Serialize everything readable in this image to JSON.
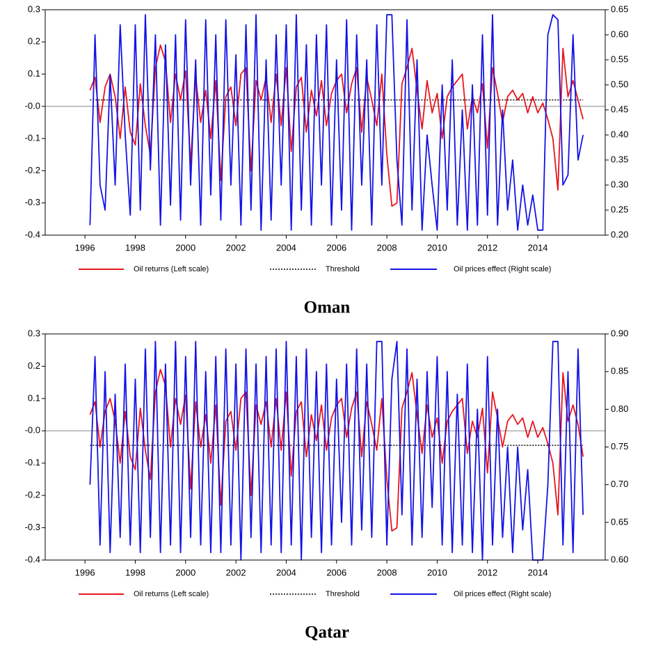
{
  "chart_data": [
    {
      "type": "line",
      "title": "Oman",
      "x": [
        1996.2,
        1996.4,
        1996.6,
        1996.8,
        1997,
        1997.2,
        1997.4,
        1997.6,
        1997.8,
        1998,
        1998.2,
        1998.4,
        1998.6,
        1998.8,
        1999,
        1999.2,
        1999.4,
        1999.6,
        1999.8,
        2000,
        2000.2,
        2000.4,
        2000.6,
        2000.8,
        2001,
        2001.2,
        2001.4,
        2001.6,
        2001.8,
        2002,
        2002.2,
        2002.4,
        2002.6,
        2002.8,
        2003,
        2003.2,
        2003.4,
        2003.6,
        2003.8,
        2004,
        2004.2,
        2004.4,
        2004.6,
        2004.8,
        2005,
        2005.2,
        2005.4,
        2005.6,
        2005.8,
        2006,
        2006.2,
        2006.4,
        2006.6,
        2006.8,
        2007,
        2007.2,
        2007.4,
        2007.6,
        2007.8,
        2008,
        2008.2,
        2008.4,
        2008.6,
        2008.8,
        2009,
        2009.2,
        2009.4,
        2009.6,
        2009.8,
        2010,
        2010.2,
        2010.4,
        2010.6,
        2010.8,
        2011,
        2011.2,
        2011.4,
        2011.6,
        2011.8,
        2012,
        2012.2,
        2012.4,
        2012.6,
        2012.8,
        2013,
        2013.2,
        2013.4,
        2013.6,
        2013.8,
        2014,
        2014.2,
        2014.4,
        2014.6,
        2014.8,
        2015,
        2015.2,
        2015.4,
        2015.6,
        2015.8
      ],
      "xlim": [
        1994.42,
        2016.68
      ],
      "xticks": [
        1996,
        1998,
        2000,
        2002,
        2004,
        2006,
        2008,
        2010,
        2012,
        2014
      ],
      "ylim": [
        -0.4,
        0.3
      ],
      "yticks": [
        -0.4,
        -0.3,
        -0.2,
        -0.1,
        {
          "value": 0,
          "label": "-0.0"
        },
        0.1,
        0.2,
        0.3
      ],
      "y2lim": [
        0.2,
        0.65
      ],
      "y2ticks": [
        {
          "value": 0.2,
          "label": "0.20"
        },
        0.25,
        {
          "value": 0.3,
          "label": "0.30"
        },
        0.35,
        {
          "value": 0.4,
          "label": "0.40"
        },
        0.45,
        {
          "value": 0.5,
          "label": "0.50"
        },
        0.55,
        {
          "value": 0.6,
          "label": "0.60"
        },
        0.65
      ],
      "series": [
        {
          "name": "Oil returns (Left scale)",
          "color": "#e8141c",
          "values": [
            0.05,
            0.09,
            -0.05,
            0.06,
            0.1,
            0.03,
            -0.1,
            0.06,
            -0.08,
            -0.12,
            0.07,
            -0.06,
            -0.15,
            0.12,
            0.19,
            0.14,
            -0.05,
            0.1,
            0.02,
            0.11,
            -0.18,
            0.09,
            -0.05,
            0.05,
            -0.1,
            0.08,
            -0.23,
            0.03,
            0.06,
            -0.06,
            0.1,
            0.12,
            -0.2,
            0.08,
            0.02,
            0.09,
            -0.05,
            0.1,
            -0.06,
            0.12,
            -0.14,
            0.06,
            0.09,
            -0.08,
            0.05,
            -0.03,
            0.08,
            -0.06,
            0.04,
            0.08,
            0.1,
            -0.02,
            0.07,
            0.12,
            -0.08,
            0.09,
            0.02,
            -0.06,
            0.1,
            -0.15,
            -0.31,
            -0.3,
            0.07,
            0.12,
            0.18,
            0.05,
            -0.07,
            0.08,
            -0.02,
            0.04,
            -0.1,
            0.03,
            0.06,
            0.08,
            0.1,
            -0.07,
            0.03,
            -0.02,
            0.07,
            -0.13,
            0.12,
            0.04,
            -0.05,
            0.03,
            0.05,
            0.02,
            0.04,
            -0.02,
            0.03,
            -0.02,
            0.01,
            -0.04,
            -0.1,
            -0.26,
            0.18,
            0.03,
            0.08,
            0.02,
            -0.04
          ]
        },
        {
          "name": "Threshold",
          "color": "#000000",
          "style": "dotted",
          "value": 0.02
        },
        {
          "name": "Oil prices effect (Right scale)",
          "color": "#1212e6",
          "axis": "y2",
          "values": [
            0.22,
            0.6,
            0.3,
            0.25,
            0.52,
            0.3,
            0.62,
            0.4,
            0.24,
            0.62,
            0.25,
            0.64,
            0.33,
            0.6,
            0.22,
            0.58,
            0.26,
            0.6,
            0.23,
            0.63,
            0.3,
            0.55,
            0.22,
            0.63,
            0.28,
            0.6,
            0.23,
            0.63,
            0.3,
            0.56,
            0.22,
            0.62,
            0.25,
            0.64,
            0.21,
            0.55,
            0.23,
            0.6,
            0.3,
            0.62,
            0.21,
            0.64,
            0.25,
            0.58,
            0.22,
            0.6,
            0.3,
            0.62,
            0.22,
            0.55,
            0.25,
            0.63,
            0.21,
            0.6,
            0.3,
            0.55,
            0.22,
            0.62,
            0.3,
            0.64,
            0.64,
            0.35,
            0.22,
            0.63,
            0.25,
            0.55,
            0.21,
            0.4,
            0.3,
            0.21,
            0.5,
            0.25,
            0.55,
            0.22,
            0.45,
            0.21,
            0.5,
            0.22,
            0.6,
            0.24,
            0.64,
            0.22,
            0.45,
            0.25,
            0.35,
            0.21,
            0.3,
            0.22,
            0.28,
            0.21,
            0.21,
            0.6,
            0.64,
            0.63,
            0.3,
            0.32,
            0.6,
            0.35,
            0.4
          ]
        }
      ]
    },
    {
      "type": "line",
      "title": "Qatar",
      "x": [
        1996.2,
        1996.4,
        1996.6,
        1996.8,
        1997,
        1997.2,
        1997.4,
        1997.6,
        1997.8,
        1998,
        1998.2,
        1998.4,
        1998.6,
        1998.8,
        1999,
        1999.2,
        1999.4,
        1999.6,
        1999.8,
        2000,
        2000.2,
        2000.4,
        2000.6,
        2000.8,
        2001,
        2001.2,
        2001.4,
        2001.6,
        2001.8,
        2002,
        2002.2,
        2002.4,
        2002.6,
        2002.8,
        2003,
        2003.2,
        2003.4,
        2003.6,
        2003.8,
        2004,
        2004.2,
        2004.4,
        2004.6,
        2004.8,
        2005,
        2005.2,
        2005.4,
        2005.6,
        2005.8,
        2006,
        2006.2,
        2006.4,
        2006.6,
        2006.8,
        2007,
        2007.2,
        2007.4,
        2007.6,
        2007.8,
        2008,
        2008.2,
        2008.4,
        2008.6,
        2008.8,
        2009,
        2009.2,
        2009.4,
        2009.6,
        2009.8,
        2010,
        2010.2,
        2010.4,
        2010.6,
        2010.8,
        2011,
        2011.2,
        2011.4,
        2011.6,
        2011.8,
        2012,
        2012.2,
        2012.4,
        2012.6,
        2012.8,
        2013,
        2013.2,
        2013.4,
        2013.6,
        2013.8,
        2014,
        2014.2,
        2014.4,
        2014.6,
        2014.8,
        2015,
        2015.2,
        2015.4,
        2015.6,
        2015.8
      ],
      "xlim": [
        1994.42,
        2016.68
      ],
      "xticks": [
        1996,
        1998,
        2000,
        2002,
        2004,
        2006,
        2008,
        2010,
        2012,
        2014
      ],
      "ylim": [
        -0.4,
        0.3
      ],
      "yticks": [
        -0.4,
        -0.3,
        -0.2,
        -0.1,
        {
          "value": 0,
          "label": "-0.0"
        },
        0.1,
        0.2,
        0.3
      ],
      "y2lim": [
        0.6,
        0.9
      ],
      "y2ticks": [
        {
          "value": 0.6,
          "label": "0.60"
        },
        0.65,
        {
          "value": 0.7,
          "label": "0.70"
        },
        0.75,
        {
          "value": 0.8,
          "label": "0.80"
        },
        0.85,
        {
          "value": 0.9,
          "label": "0.90"
        }
      ],
      "series": [
        {
          "name": "Oil returns (Left scale)",
          "color": "#e8141c",
          "values": [
            0.05,
            0.09,
            -0.05,
            0.06,
            0.1,
            0.03,
            -0.1,
            0.06,
            -0.08,
            -0.12,
            0.07,
            -0.06,
            -0.15,
            0.12,
            0.19,
            0.14,
            -0.05,
            0.1,
            0.02,
            0.11,
            -0.18,
            0.09,
            -0.05,
            0.05,
            -0.1,
            0.08,
            -0.23,
            0.03,
            0.06,
            -0.06,
            0.1,
            0.12,
            -0.2,
            0.08,
            0.02,
            0.09,
            -0.05,
            0.1,
            -0.06,
            0.12,
            -0.14,
            0.06,
            0.09,
            -0.08,
            0.05,
            -0.03,
            0.08,
            -0.06,
            0.04,
            0.08,
            0.1,
            -0.02,
            0.07,
            0.12,
            -0.08,
            0.09,
            0.02,
            -0.06,
            0.1,
            -0.15,
            -0.31,
            -0.3,
            0.07,
            0.12,
            0.18,
            0.05,
            -0.07,
            0.08,
            -0.02,
            0.04,
            -0.1,
            0.03,
            0.06,
            0.08,
            0.1,
            -0.07,
            0.03,
            -0.02,
            0.07,
            -0.13,
            0.12,
            0.04,
            -0.05,
            0.03,
            0.05,
            0.02,
            0.04,
            -0.02,
            0.03,
            -0.02,
            0.01,
            -0.04,
            -0.1,
            -0.26,
            0.18,
            0.03,
            0.08,
            0.02,
            -0.08
          ]
        },
        {
          "name": "Threshold",
          "color": "#000000",
          "style": "dotted",
          "value": -0.045
        },
        {
          "name": "Oil prices effect (Right scale)",
          "color": "#1212e6",
          "axis": "y2",
          "values": [
            0.7,
            0.87,
            0.62,
            0.85,
            0.61,
            0.82,
            0.63,
            0.86,
            0.62,
            0.84,
            0.61,
            0.88,
            0.63,
            0.89,
            0.61,
            0.86,
            0.62,
            0.89,
            0.61,
            0.87,
            0.63,
            0.89,
            0.62,
            0.85,
            0.61,
            0.87,
            0.61,
            0.88,
            0.62,
            0.86,
            0.6,
            0.88,
            0.63,
            0.86,
            0.61,
            0.87,
            0.62,
            0.88,
            0.61,
            0.89,
            0.62,
            0.87,
            0.6,
            0.88,
            0.63,
            0.85,
            0.61,
            0.86,
            0.62,
            0.84,
            0.65,
            0.86,
            0.62,
            0.88,
            0.64,
            0.86,
            0.63,
            0.89,
            0.89,
            0.62,
            0.84,
            0.89,
            0.66,
            0.88,
            0.62,
            0.84,
            0.63,
            0.85,
            0.67,
            0.87,
            0.62,
            0.85,
            0.61,
            0.82,
            0.62,
            0.86,
            0.61,
            0.8,
            0.6,
            0.87,
            0.62,
            0.8,
            0.63,
            0.75,
            0.61,
            0.75,
            0.64,
            0.72,
            0.6,
            0.6,
            0.6,
            0.7,
            0.89,
            0.89,
            0.62,
            0.85,
            0.61,
            0.88,
            0.66
          ]
        }
      ]
    }
  ]
}
